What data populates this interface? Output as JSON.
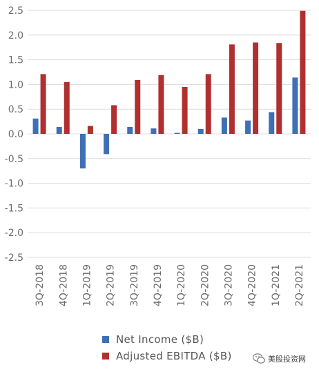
{
  "chart_data": {
    "type": "bar",
    "categories": [
      "3Q-2018",
      "4Q-2018",
      "1Q-2019",
      "2Q-2019",
      "3Q-2019",
      "4Q-2019",
      "1Q-2020",
      "2Q-2020",
      "3Q-2020",
      "4Q-2020",
      "1Q-2021",
      "2Q-2021"
    ],
    "series": [
      {
        "name": "Net Income ($B)",
        "color": "#3f6fb5",
        "values": [
          0.31,
          0.14,
          -0.7,
          -0.41,
          0.14,
          0.11,
          0.02,
          0.1,
          0.33,
          0.27,
          0.44,
          1.14
        ]
      },
      {
        "name": "Adjusted EBITDA ($B)",
        "color": "#b03030",
        "values": [
          1.21,
          1.05,
          0.16,
          0.58,
          1.09,
          1.19,
          0.95,
          1.21,
          1.81,
          1.85,
          1.84,
          2.49
        ]
      }
    ],
    "yticks": [
      "2.5",
      "2.0",
      "1.5",
      "1.0",
      "0.5",
      "0.0",
      "-0.5",
      "-1.0",
      "-1.5",
      "-2.0",
      "-2.5"
    ],
    "ylim": [
      -2.5,
      2.5
    ],
    "grid": true,
    "legend_position": "bottom"
  },
  "watermark": {
    "text": "美股投资网",
    "icon": "wechat-icon"
  }
}
